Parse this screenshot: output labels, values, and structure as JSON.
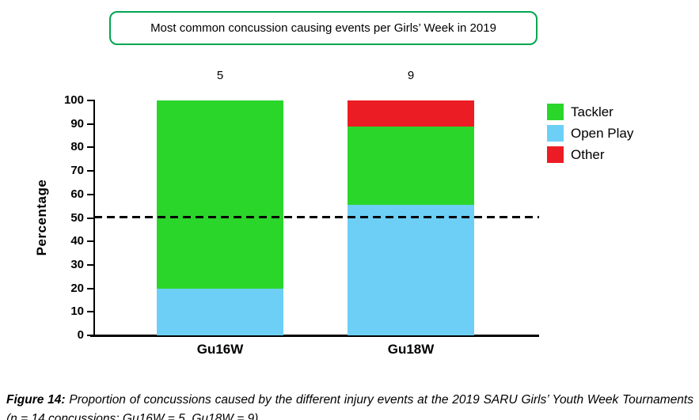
{
  "page": {
    "background": "#ffffff"
  },
  "title_box": {
    "label": "Most common concussion causing events per Girls’ Week in 2019",
    "border_color": "#00A651"
  },
  "chart_data": {
    "type": "bar",
    "stacked": true,
    "title": "Most common concussion causing events per Girls’ Week in 2019",
    "categories": [
      "Gu16W",
      "Gu18W"
    ],
    "bar_count_labels": [
      "5",
      "9"
    ],
    "series": [
      {
        "name": "Open Play",
        "color": "#6DCFF6",
        "values": [
          20,
          55.6
        ]
      },
      {
        "name": "Tackler",
        "color": "#2BD62B",
        "values": [
          80,
          33.3
        ]
      },
      {
        "name": "Other",
        "color": "#EC1C24",
        "values": [
          0,
          11.1
        ]
      }
    ],
    "legend_order": [
      "Tackler",
      "Open Play",
      "Other"
    ],
    "legend_position": "right",
    "xlabel": "",
    "ylabel": "Percentage",
    "ylim": [
      0,
      100
    ],
    "yticks": [
      0,
      10,
      20,
      30,
      40,
      50,
      60,
      70,
      80,
      90,
      100
    ],
    "grid": false,
    "reference_line": 50,
    "reference_line_style": "dashed"
  },
  "caption": {
    "prefix": "Figure 14:",
    "text": " Proportion of concussions caused by the different injury events at the 2019 SARU Girls’ Youth Week Tournaments (n = 14 concussions; Gu16W = 5, Gu18W = 9)."
  }
}
